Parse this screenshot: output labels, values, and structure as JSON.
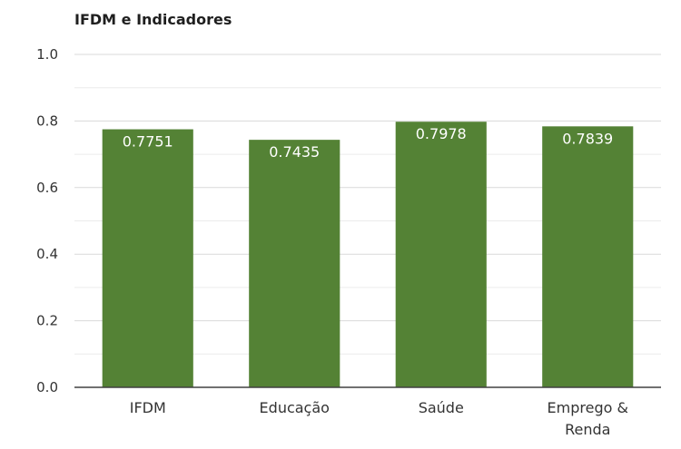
{
  "chart_data": {
    "type": "bar",
    "title": "IFDM e Indicadores",
    "categories": [
      "IFDM",
      "Educação",
      "Saúde",
      "Emprego & Renda"
    ],
    "category_lines": [
      [
        "IFDM"
      ],
      [
        "Educação"
      ],
      [
        "Saúde"
      ],
      [
        "Emprego &",
        "Renda"
      ]
    ],
    "values": [
      0.7751,
      0.7435,
      0.7978,
      0.7839
    ],
    "data_labels": [
      "0.7751",
      "0.7435",
      "0.7978",
      "0.7839"
    ],
    "ylim": [
      0,
      1.0
    ],
    "yticks": [
      0.0,
      0.2,
      0.4,
      0.6,
      0.8,
      1.0
    ],
    "ytick_labels": [
      "0.0",
      "0.2",
      "0.4",
      "0.6",
      "0.8",
      "1.0"
    ],
    "grid": true,
    "minor_grid": true,
    "xlabel": "",
    "ylabel": "",
    "bar_color": "#548235",
    "grid_color": "#d9d9d9",
    "minor_grid_color": "#ececec"
  }
}
